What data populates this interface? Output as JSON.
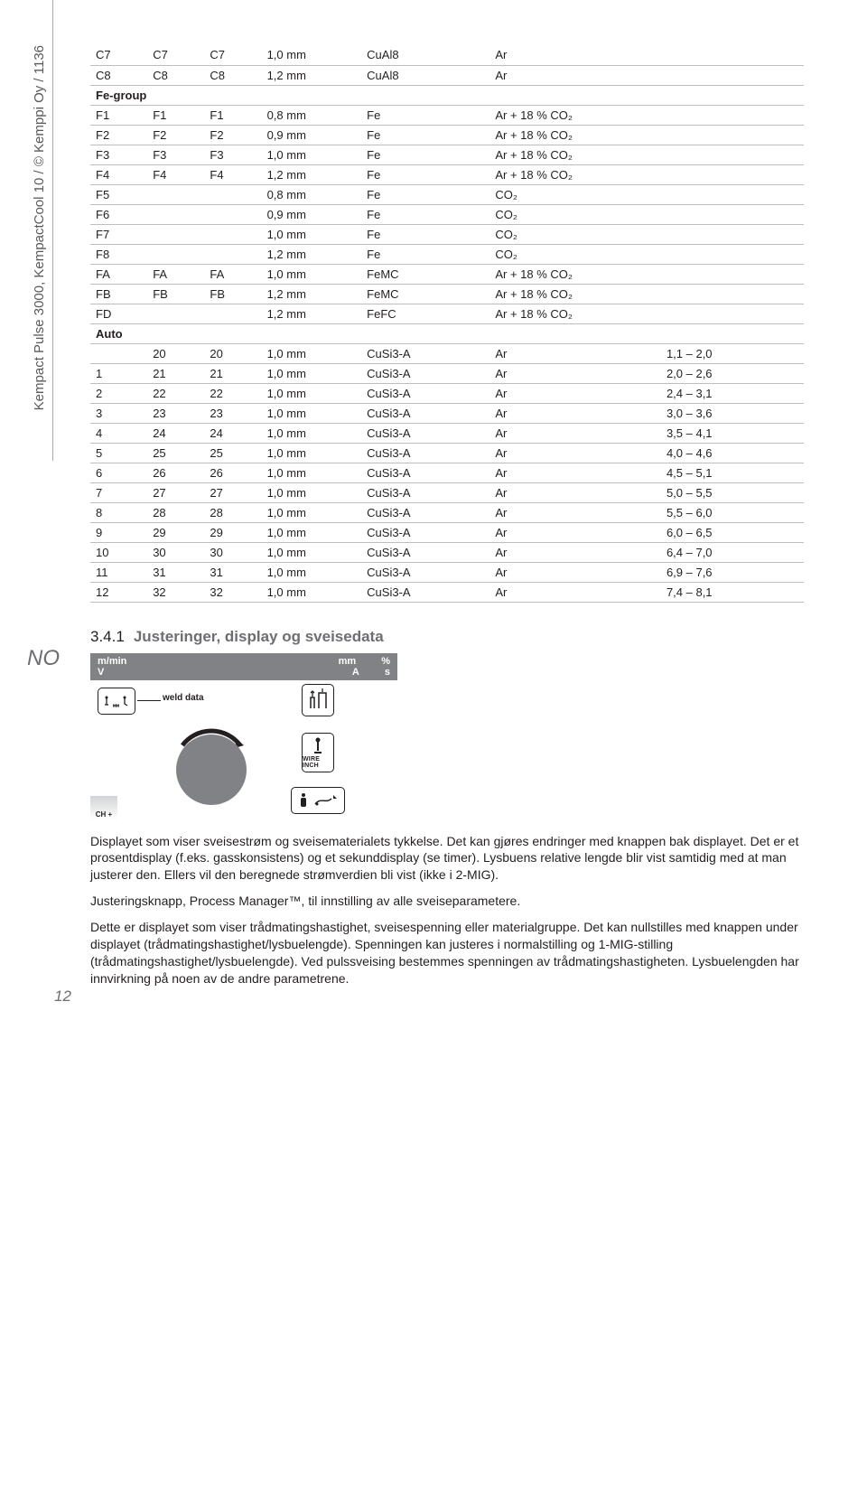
{
  "side": "Kempact Pulse 3000, KempactCool 10 / © Kemppi Oy / 1136",
  "lang": "NO",
  "pageNum": "12",
  "feGroupLabel": "Fe-group",
  "autoLabel": "Auto",
  "rows_top": [
    [
      "C7",
      "C7",
      "C7",
      "1,0 mm",
      "CuAl8",
      "Ar",
      ""
    ],
    [
      "C8",
      "C8",
      "C8",
      "1,2 mm",
      "CuAl8",
      "Ar",
      ""
    ]
  ],
  "rows_fe": [
    [
      "F1",
      "F1",
      "F1",
      "0,8 mm",
      "Fe",
      "Ar + 18 % CO₂",
      ""
    ],
    [
      "F2",
      "F2",
      "F2",
      "0,9 mm",
      "Fe",
      "Ar + 18 % CO₂",
      ""
    ],
    [
      "F3",
      "F3",
      "F3",
      "1,0 mm",
      "Fe",
      "Ar + 18 % CO₂",
      ""
    ],
    [
      "F4",
      "F4",
      "F4",
      "1,2 mm",
      "Fe",
      "Ar + 18 % CO₂",
      ""
    ],
    [
      "F5",
      "",
      "",
      "0,8 mm",
      "Fe",
      "CO₂",
      ""
    ],
    [
      "F6",
      "",
      "",
      "0,9 mm",
      "Fe",
      "CO₂",
      ""
    ],
    [
      "F7",
      "",
      "",
      "1,0 mm",
      "Fe",
      "CO₂",
      ""
    ],
    [
      "F8",
      "",
      "",
      "1,2 mm",
      "Fe",
      "CO₂",
      ""
    ],
    [
      "FA",
      "FA",
      "FA",
      "1,0 mm",
      "FeMC",
      "Ar + 18 % CO₂",
      ""
    ],
    [
      "FB",
      "FB",
      "FB",
      "1,2 mm",
      "FeMC",
      "Ar + 18 % CO₂",
      ""
    ],
    [
      "FD",
      "",
      "",
      "1,2 mm",
      "FeFC",
      "Ar + 18 % CO₂",
      ""
    ]
  ],
  "rows_auto": [
    [
      "",
      "20",
      "20",
      "1,0 mm",
      "CuSi3-A",
      "Ar",
      "1,1 – 2,0"
    ],
    [
      "1",
      "21",
      "21",
      "1,0 mm",
      "CuSi3-A",
      "Ar",
      "2,0 – 2,6"
    ],
    [
      "2",
      "22",
      "22",
      "1,0 mm",
      "CuSi3-A",
      "Ar",
      "2,4 – 3,1"
    ],
    [
      "3",
      "23",
      "23",
      "1,0 mm",
      "CuSi3-A",
      "Ar",
      "3,0 – 3,6"
    ],
    [
      "4",
      "24",
      "24",
      "1,0 mm",
      "CuSi3-A",
      "Ar",
      "3,5 – 4,1"
    ],
    [
      "5",
      "25",
      "25",
      "1,0 mm",
      "CuSi3-A",
      "Ar",
      "4,0 – 4,6"
    ],
    [
      "6",
      "26",
      "26",
      "1,0 mm",
      "CuSi3-A",
      "Ar",
      "4,5 – 5,1"
    ],
    [
      "7",
      "27",
      "27",
      "1,0 mm",
      "CuSi3-A",
      "Ar",
      "5,0 – 5,5"
    ],
    [
      "8",
      "28",
      "28",
      "1,0 mm",
      "CuSi3-A",
      "Ar",
      "5,5 – 6,0"
    ],
    [
      "9",
      "29",
      "29",
      "1,0 mm",
      "CuSi3-A",
      "Ar",
      "6,0 – 6,5"
    ],
    [
      "10",
      "30",
      "30",
      "1,0 mm",
      "CuSi3-A",
      "Ar",
      "6,4 – 7,0"
    ],
    [
      "11",
      "31",
      "31",
      "1,0 mm",
      "CuSi3-A",
      "Ar",
      "6,9 – 7,6"
    ],
    [
      "12",
      "32",
      "32",
      "1,0 mm",
      "CuSi3-A",
      "Ar",
      "7,4 – 8,1"
    ]
  ],
  "section": {
    "num": "3.4.1",
    "title": "Justeringer, display og sveisedata"
  },
  "panel": {
    "mmin": "m/min",
    "mm": "mm",
    "pct": "%",
    "v": "V",
    "a": "A",
    "s": "s",
    "weld": "weld data",
    "wire": "WIRE INCH",
    "ch": "CH +"
  },
  "para1": "Displayet som viser sveisestrøm og sveisematerialets tykkelse. Det kan gjøres endringer med knappen bak displayet. Det er et prosentdisplay (f.eks. gasskonsistens) og et sekunddisplay (se timer). Lysbuens relative lengde blir vist samtidig med at man justerer den. Ellers vil den beregnede strømverdien bli vist (ikke i 2-MIG).",
  "para2": "Justeringsknapp, Process Manager™, til innstilling av alle sveiseparametere.",
  "para3": "Dette er displayet som viser trådmatingshastighet, sveisespenning eller materialgruppe. Det kan nullstilles med knappen under displayet (trådmatingshastighet/lysbuelengde). Spenningen kan justeres i normalstilling og 1-MIG-stilling (trådmatingshastighet/lysbuelengde). Ved pulssveising bestemmes spenningen av trådmatingshastigheten. Lysbuelengden har innvirkning på noen av de andre parametrene."
}
